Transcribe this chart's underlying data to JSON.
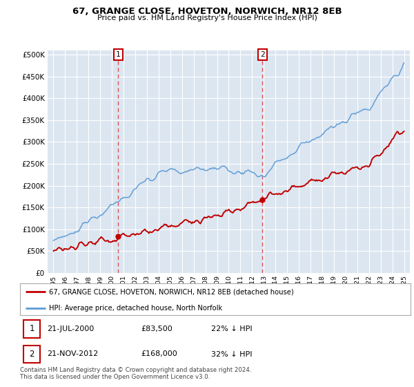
{
  "title": "67, GRANGE CLOSE, HOVETON, NORWICH, NR12 8EB",
  "subtitle": "Price paid vs. HM Land Registry's House Price Index (HPI)",
  "legend_line1": "67, GRANGE CLOSE, HOVETON, NORWICH, NR12 8EB (detached house)",
  "legend_line2": "HPI: Average price, detached house, North Norfolk",
  "table_row1": [
    "1",
    "21-JUL-2000",
    "£83,500",
    "22% ↓ HPI"
  ],
  "table_row2": [
    "2",
    "21-NOV-2012",
    "£168,000",
    "32% ↓ HPI"
  ],
  "footnote": "Contains HM Land Registry data © Crown copyright and database right 2024.\nThis data is licensed under the Open Government Licence v3.0.",
  "sale1_date": 2000.55,
  "sale1_price": 83500,
  "sale2_date": 2012.89,
  "sale2_price": 168000,
  "hpi_color": "#5b9bd5",
  "price_color": "#c00000",
  "vline_color": "#e05050",
  "bg_color": "#dce6f1",
  "plot_bg": "#ffffff",
  "yticks": [
    0,
    50000,
    100000,
    150000,
    200000,
    250000,
    300000,
    350000,
    400000,
    450000,
    500000
  ],
  "xlim_start": 1994.5,
  "xlim_end": 2025.5
}
